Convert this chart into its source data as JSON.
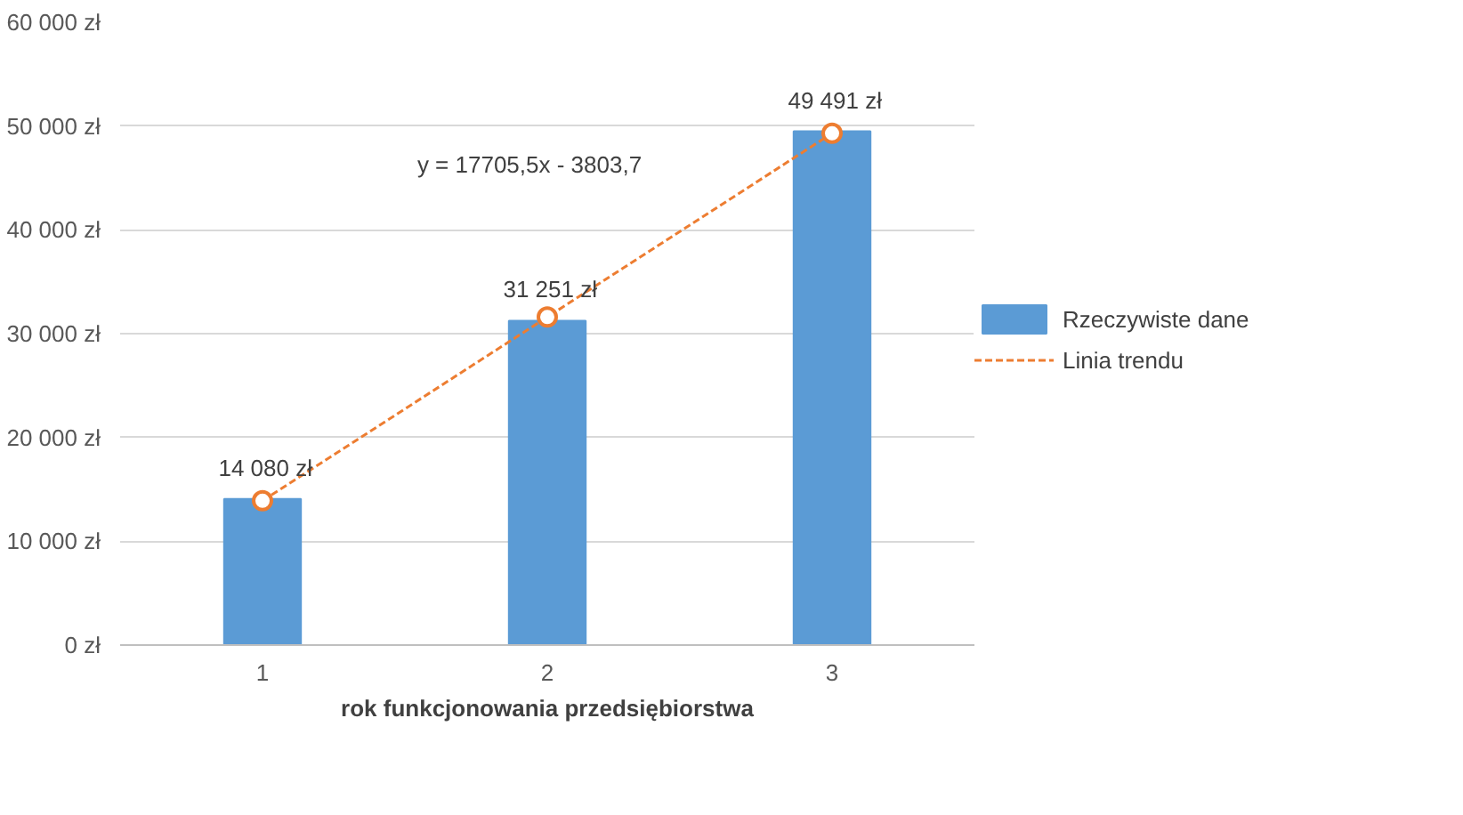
{
  "chart_data": {
    "type": "bar",
    "xlabel": "rok funkcjonowania przedsiębiorstwa",
    "categories": [
      "1",
      "2",
      "3"
    ],
    "series": [
      {
        "name": "Rzeczywiste dane",
        "color": "#5b9bd5",
        "values": [
          14080,
          31251,
          49491
        ],
        "value_labels": [
          "14 080 zł",
          "31 251 zł",
          "49 491 zł"
        ]
      },
      {
        "name": "Linia trendu",
        "type": "line",
        "color": "#ed7d31",
        "values": [
          13900,
          31600,
          49300
        ],
        "marker": "circle",
        "line_style": "dashed"
      }
    ],
    "annotations": [
      "y = 17705,5x - 3803,7"
    ],
    "ylim": [
      0,
      60000
    ],
    "yticks": [
      {
        "value": 0,
        "label": "0 zł"
      },
      {
        "value": 10000,
        "label": "10 000 zł"
      },
      {
        "value": 20000,
        "label": "20 000 zł"
      },
      {
        "value": 30000,
        "label": "30 000 zł"
      },
      {
        "value": 40000,
        "label": "40 000 zł"
      },
      {
        "value": 50000,
        "label": "50 000 zł"
      },
      {
        "value": 60000,
        "label": "60 000 zł"
      }
    ],
    "grid": "y",
    "legend": "right"
  }
}
